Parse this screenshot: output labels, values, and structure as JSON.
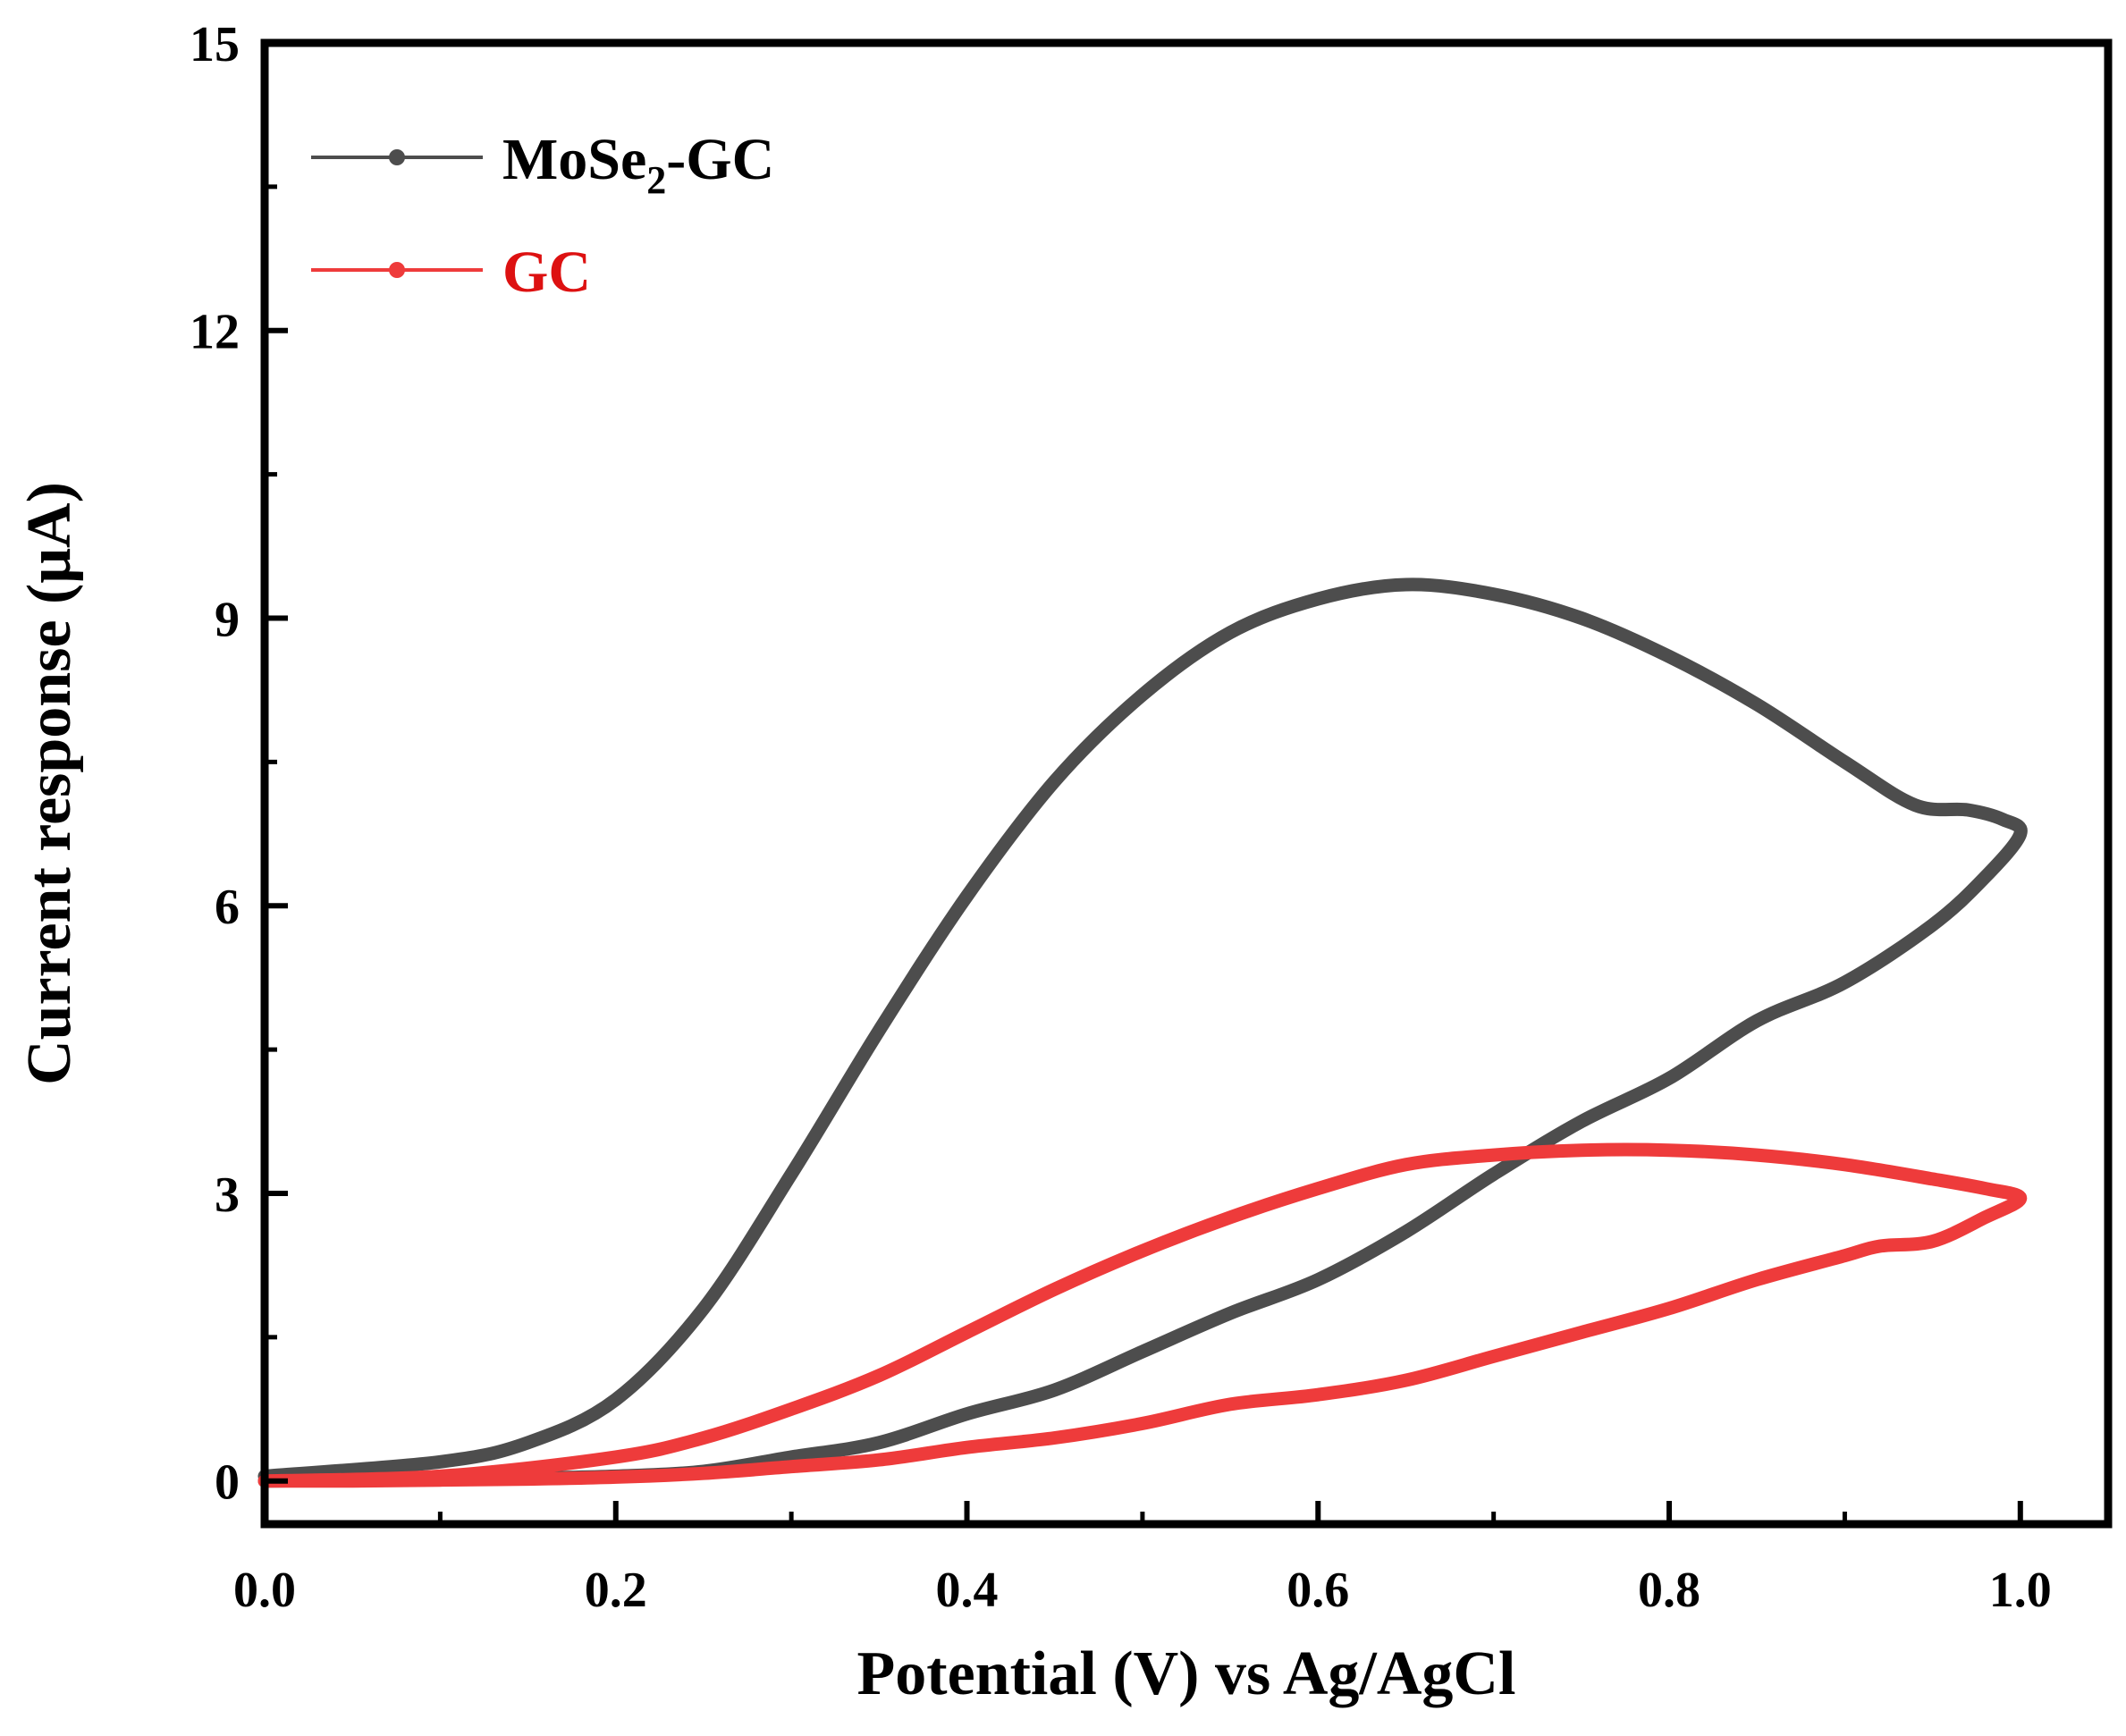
{
  "chart_data": {
    "type": "line",
    "title": "",
    "xlabel": "Potential (V) vs Ag/AgCl",
    "ylabel": "Current response (μA)",
    "xlim": [
      0.0,
      1.05
    ],
    "ylim": [
      -0.45,
      15
    ],
    "xticks": [
      0.0,
      0.2,
      0.4,
      0.6,
      0.8,
      1.0
    ],
    "xtick_labels": [
      "0.0",
      "0.2",
      "0.4",
      "0.6",
      "0.8",
      "1.0"
    ],
    "yticks": [
      0,
      3,
      6,
      9,
      12,
      15
    ],
    "ytick_labels": [
      "0",
      "3",
      "6",
      "9",
      "12",
      "15"
    ],
    "legend_position": "top-left",
    "series": [
      {
        "name": "MoSe2-GC",
        "legend_base": "MoSe",
        "legend_sub": "2",
        "legend_suffix": "-GC",
        "color": "#4d4d4d",
        "x": [
          0.0,
          0.1,
          0.15,
          0.2,
          0.25,
          0.3,
          0.35,
          0.4,
          0.45,
          0.5,
          0.55,
          0.6,
          0.65,
          0.7,
          0.75,
          0.8,
          0.85,
          0.9,
          0.94,
          0.97,
          0.99,
          1.0,
          0.98,
          0.95,
          0.9,
          0.85,
          0.8,
          0.75,
          0.7,
          0.65,
          0.6,
          0.55,
          0.5,
          0.45,
          0.4,
          0.35,
          0.3,
          0.25,
          0.2,
          0.15,
          0.1,
          0.05,
          0.0
        ],
        "y": [
          0.05,
          0.2,
          0.4,
          0.85,
          1.8,
          3.2,
          4.7,
          6.1,
          7.3,
          8.2,
          8.85,
          9.2,
          9.35,
          9.25,
          9.0,
          8.6,
          8.1,
          7.5,
          7.05,
          7.0,
          6.9,
          6.75,
          6.3,
          5.8,
          5.2,
          4.8,
          4.2,
          3.75,
          3.2,
          2.6,
          2.1,
          1.75,
          1.35,
          0.95,
          0.7,
          0.4,
          0.25,
          0.1,
          0.05,
          0.03,
          0.02,
          0.01,
          0.0
        ]
      },
      {
        "name": "GC",
        "legend_base": "GC",
        "legend_sub": "",
        "legend_suffix": "",
        "color": "#ee3b3b",
        "x": [
          0.0,
          0.1,
          0.2,
          0.25,
          0.3,
          0.35,
          0.4,
          0.45,
          0.5,
          0.55,
          0.6,
          0.65,
          0.7,
          0.75,
          0.8,
          0.85,
          0.9,
          0.95,
          0.98,
          1.0,
          0.98,
          0.95,
          0.92,
          0.9,
          0.85,
          0.8,
          0.75,
          0.7,
          0.65,
          0.6,
          0.55,
          0.5,
          0.45,
          0.4,
          0.35,
          0.3,
          0.25,
          0.2,
          0.15,
          0.1,
          0.05,
          0.0
        ],
        "y": [
          0.0,
          0.05,
          0.25,
          0.45,
          0.75,
          1.1,
          1.55,
          2.0,
          2.4,
          2.75,
          3.05,
          3.3,
          3.4,
          3.45,
          3.45,
          3.4,
          3.3,
          3.15,
          3.05,
          2.95,
          2.75,
          2.5,
          2.45,
          2.35,
          2.1,
          1.8,
          1.55,
          1.3,
          1.05,
          0.9,
          0.8,
          0.6,
          0.45,
          0.35,
          0.22,
          0.15,
          0.08,
          0.04,
          0.02,
          0.01,
          0.0,
          0.0
        ]
      }
    ]
  }
}
